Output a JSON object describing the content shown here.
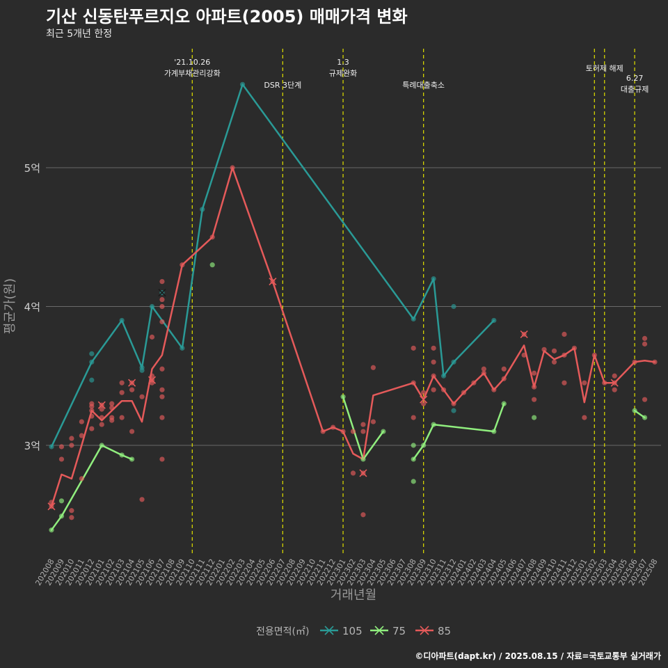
{
  "title": "기산 신동탄푸르지오 아파트(2005) 매매가격 변화",
  "subtitle": "최근 5개년 한정",
  "caption": "©디아파트(dapt.kr) / 2025.08.15 / 자료=국토교통부 실거래가",
  "chart_data": {
    "type": "line",
    "xlabel": "거래년월",
    "ylabel": "평균가(원)",
    "categories": [
      "202008",
      "202009",
      "202010",
      "202011",
      "202012",
      "202101",
      "202102",
      "202103",
      "202104",
      "202105",
      "202106",
      "202107",
      "202108",
      "202109",
      "202110",
      "202111",
      "202112",
      "202201",
      "202202",
      "202203",
      "202204",
      "202205",
      "202206",
      "202207",
      "202208",
      "202209",
      "202210",
      "202211",
      "202212",
      "202301",
      "202302",
      "202303",
      "202304",
      "202305",
      "202306",
      "202307",
      "202308",
      "202309",
      "202310",
      "202311",
      "202312",
      "202401",
      "202402",
      "202403",
      "202404",
      "202405",
      "202406",
      "202407",
      "202408",
      "202409",
      "202410",
      "202411",
      "202412",
      "202501",
      "202502",
      "202503",
      "202504",
      "202505",
      "202506",
      "202507",
      "202508"
    ],
    "y_ticks": [
      {
        "value": 3.0,
        "label": "3억"
      },
      {
        "value": 4.0,
        "label": "4억"
      },
      {
        "value": 5.0,
        "label": "5억"
      }
    ],
    "ylim": [
      2.3,
      5.9
    ],
    "grid": true,
    "legend_position": "bottom",
    "legend_title": "전용면적(㎡)",
    "series": [
      {
        "name": "105",
        "color": "#2a9a96",
        "points": [
          [
            "202008",
            2.99
          ],
          [
            "202012",
            3.6
          ],
          [
            "202103",
            3.9
          ],
          [
            "202105",
            3.56
          ],
          [
            "202106",
            4.0
          ],
          [
            "202109",
            3.7
          ],
          [
            "202111",
            4.7
          ],
          [
            "202203",
            5.6
          ],
          [
            "202308",
            3.91
          ],
          [
            "202310",
            4.2
          ],
          [
            "202311",
            3.5
          ],
          [
            "202312",
            3.6
          ],
          [
            "202404",
            3.9
          ]
        ],
        "scatter": [
          [
            "202008",
            2.99
          ],
          [
            "202012",
            3.66
          ],
          [
            "202012",
            3.47
          ],
          [
            "202012",
            3.6
          ],
          [
            "202103",
            3.9
          ],
          [
            "202105",
            3.56
          ],
          [
            "202105",
            3.54
          ],
          [
            "202106",
            4.0
          ],
          [
            "202107",
            4.1
          ],
          [
            "202109",
            3.7
          ],
          [
            "202111",
            4.7
          ],
          [
            "202203",
            5.6
          ],
          [
            "202308",
            3.91
          ],
          [
            "202310",
            4.2
          ],
          [
            "202311",
            3.5
          ],
          [
            "202312",
            3.6
          ],
          [
            "202312",
            4.0
          ],
          [
            "202312",
            3.25
          ],
          [
            "202404",
            3.9
          ]
        ],
        "x_marks": [
          [
            "202107",
            4.1
          ]
        ]
      },
      {
        "name": "75",
        "color": "#90ee7e",
        "points": [
          [
            "202008",
            2.39
          ],
          [
            "202009",
            2.49
          ],
          [
            "202101",
            3.0
          ],
          [
            "202103",
            2.93
          ],
          [
            "202104",
            2.9
          ]
        ],
        "points2": [
          [
            "202301",
            3.35
          ],
          [
            "202303",
            2.9
          ],
          [
            "202305",
            3.1
          ]
        ],
        "points3": [
          [
            "202308",
            2.9
          ],
          [
            "202309",
            3.0
          ],
          [
            "202310",
            3.15
          ],
          [
            "202404",
            3.1
          ],
          [
            "202405",
            3.3
          ]
        ],
        "points4": [
          [
            "202506",
            3.25
          ],
          [
            "202507",
            3.2
          ]
        ],
        "scatter": [
          [
            "202008",
            2.39
          ],
          [
            "202009",
            2.6
          ],
          [
            "202009",
            2.49
          ],
          [
            "202101",
            3.0
          ],
          [
            "202103",
            2.93
          ],
          [
            "202104",
            2.9
          ],
          [
            "202112",
            4.3
          ],
          [
            "202301",
            3.35
          ],
          [
            "202303",
            2.9
          ],
          [
            "202305",
            3.1
          ],
          [
            "202308",
            2.9
          ],
          [
            "202308",
            3.0
          ],
          [
            "202308",
            2.74
          ],
          [
            "202309",
            3.0
          ],
          [
            "202310",
            3.15
          ],
          [
            "202404",
            3.1
          ],
          [
            "202405",
            3.3
          ],
          [
            "202408",
            3.2
          ],
          [
            "202506",
            3.25
          ],
          [
            "202507",
            3.2
          ]
        ],
        "x_marks": []
      },
      {
        "name": "85",
        "color": "#e55a5a",
        "points": [
          [
            "202008",
            2.56
          ],
          [
            "202009",
            2.79
          ],
          [
            "202010",
            2.76
          ],
          [
            "202011",
            3.0
          ],
          [
            "202012",
            3.25
          ],
          [
            "202101",
            3.18
          ],
          [
            "202102",
            3.25
          ],
          [
            "202103",
            3.32
          ],
          [
            "202104",
            3.32
          ],
          [
            "202105",
            3.17
          ],
          [
            "202106",
            3.55
          ],
          [
            "202107",
            3.65
          ],
          [
            "202109",
            4.3
          ],
          [
            "202112",
            4.5
          ],
          [
            "202202",
            5.0
          ],
          [
            "202206",
            4.18
          ],
          [
            "202211",
            3.1
          ],
          [
            "202212",
            3.13
          ],
          [
            "202301",
            3.1
          ],
          [
            "202302",
            2.94
          ],
          [
            "202303",
            2.9
          ],
          [
            "202304",
            3.36
          ],
          [
            "202308",
            3.45
          ],
          [
            "202309",
            3.33
          ],
          [
            "202310",
            3.5
          ],
          [
            "202311",
            3.4
          ],
          [
            "202312",
            3.3
          ],
          [
            "202401",
            3.38
          ],
          [
            "202402",
            3.45
          ],
          [
            "202403",
            3.52
          ],
          [
            "202404",
            3.4
          ],
          [
            "202405",
            3.48
          ],
          [
            "202407",
            3.72
          ],
          [
            "202408",
            3.42
          ],
          [
            "202409",
            3.68
          ],
          [
            "202410",
            3.62
          ],
          [
            "202411",
            3.65
          ],
          [
            "202412",
            3.7
          ],
          [
            "202501",
            3.31
          ],
          [
            "202502",
            3.65
          ],
          [
            "202503",
            3.45
          ],
          [
            "202504",
            3.45
          ],
          [
            "202506",
            3.6
          ],
          [
            "202507",
            3.61
          ],
          [
            "202508",
            3.6
          ]
        ],
        "scatter": [
          [
            "202008",
            2.56
          ],
          [
            "202008",
            2.59
          ],
          [
            "202009",
            2.99
          ],
          [
            "202009",
            2.9
          ],
          [
            "202010",
            3.05
          ],
          [
            "202010",
            3.0
          ],
          [
            "202010",
            2.53
          ],
          [
            "202010",
            2.48
          ],
          [
            "202011",
            3.17
          ],
          [
            "202011",
            3.07
          ],
          [
            "202011",
            2.76
          ],
          [
            "202012",
            3.3
          ],
          [
            "202012",
            3.28
          ],
          [
            "202012",
            3.25
          ],
          [
            "202012",
            3.21
          ],
          [
            "202012",
            3.12
          ],
          [
            "202101",
            3.29
          ],
          [
            "202101",
            3.26
          ],
          [
            "202101",
            3.2
          ],
          [
            "202101",
            3.15
          ],
          [
            "202102",
            3.3
          ],
          [
            "202102",
            3.27
          ],
          [
            "202102",
            3.2
          ],
          [
            "202102",
            3.18
          ],
          [
            "202103",
            3.45
          ],
          [
            "202103",
            3.38
          ],
          [
            "202103",
            3.2
          ],
          [
            "202104",
            3.45
          ],
          [
            "202104",
            3.4
          ],
          [
            "202104",
            3.1
          ],
          [
            "202105",
            3.35
          ],
          [
            "202105",
            2.61
          ],
          [
            "202106",
            3.78
          ],
          [
            "202106",
            3.5
          ],
          [
            "202106",
            3.47
          ],
          [
            "202106",
            3.45
          ],
          [
            "202107",
            4.18
          ],
          [
            "202107",
            4.05
          ],
          [
            "202107",
            4.0
          ],
          [
            "202107",
            3.89
          ],
          [
            "202107",
            3.55
          ],
          [
            "202107",
            3.4
          ],
          [
            "202107",
            3.35
          ],
          [
            "202107",
            3.2
          ],
          [
            "202107",
            2.9
          ],
          [
            "202109",
            4.3
          ],
          [
            "202112",
            4.5
          ],
          [
            "202202",
            5.0
          ],
          [
            "202206",
            4.18
          ],
          [
            "202211",
            3.1
          ],
          [
            "202212",
            3.13
          ],
          [
            "202301",
            3.1
          ],
          [
            "202302",
            3.1
          ],
          [
            "202302",
            2.8
          ],
          [
            "202303",
            3.15
          ],
          [
            "202303",
            3.1
          ],
          [
            "202303",
            2.8
          ],
          [
            "202303",
            2.5
          ],
          [
            "202304",
            3.56
          ],
          [
            "202304",
            3.17
          ],
          [
            "202308",
            3.7
          ],
          [
            "202308",
            3.45
          ],
          [
            "202308",
            3.2
          ],
          [
            "202309",
            3.38
          ],
          [
            "202309",
            3.3
          ],
          [
            "202310",
            3.7
          ],
          [
            "202310",
            3.6
          ],
          [
            "202310",
            3.5
          ],
          [
            "202310",
            3.4
          ],
          [
            "202311",
            3.4
          ],
          [
            "202312",
            3.3
          ],
          [
            "202401",
            3.38
          ],
          [
            "202402",
            3.45
          ],
          [
            "202403",
            3.55
          ],
          [
            "202403",
            3.52
          ],
          [
            "202404",
            3.4
          ],
          [
            "202405",
            3.55
          ],
          [
            "202405",
            3.48
          ],
          [
            "202407",
            3.8
          ],
          [
            "202407",
            3.65
          ],
          [
            "202408",
            3.52
          ],
          [
            "202408",
            3.42
          ],
          [
            "202408",
            3.33
          ],
          [
            "202409",
            3.69
          ],
          [
            "202410",
            3.68
          ],
          [
            "202410",
            3.6
          ],
          [
            "202411",
            3.8
          ],
          [
            "202411",
            3.65
          ],
          [
            "202411",
            3.45
          ],
          [
            "202412",
            3.7
          ],
          [
            "202501",
            3.45
          ],
          [
            "202501",
            3.2
          ],
          [
            "202502",
            3.65
          ],
          [
            "202503",
            3.45
          ],
          [
            "202504",
            3.5
          ],
          [
            "202504",
            3.45
          ],
          [
            "202504",
            3.4
          ],
          [
            "202506",
            3.6
          ],
          [
            "202507",
            3.77
          ],
          [
            "202507",
            3.73
          ],
          [
            "202507",
            3.33
          ],
          [
            "202508",
            3.6
          ]
        ],
        "x_marks": [
          [
            "202008",
            2.56
          ],
          [
            "202101",
            3.29
          ],
          [
            "202104",
            3.45
          ],
          [
            "202106",
            3.47
          ],
          [
            "202206",
            4.18
          ],
          [
            "202303",
            2.8
          ],
          [
            "202309",
            3.33
          ],
          [
            "202407",
            3.8
          ],
          [
            "202504",
            3.45
          ]
        ]
      }
    ],
    "events": [
      {
        "x": "202110",
        "lines": [
          "'21.10.26",
          "가계부채관리강화"
        ],
        "level": 0
      },
      {
        "x": "202207",
        "lines": [
          "DSR 3단계"
        ],
        "level": 1
      },
      {
        "x": "202301",
        "lines": [
          "1.3",
          "규제완화"
        ],
        "level": 0
      },
      {
        "x": "202309",
        "lines": [
          "특례대출축소"
        ],
        "level": 1
      },
      {
        "x": "202502",
        "lines": [],
        "level": 0
      },
      {
        "x": "202503",
        "lines": [
          "토허제 해제"
        ],
        "level": 0
      },
      {
        "x": "202506",
        "lines": [
          "6.27",
          "대출규제"
        ],
        "level": 1
      }
    ]
  }
}
